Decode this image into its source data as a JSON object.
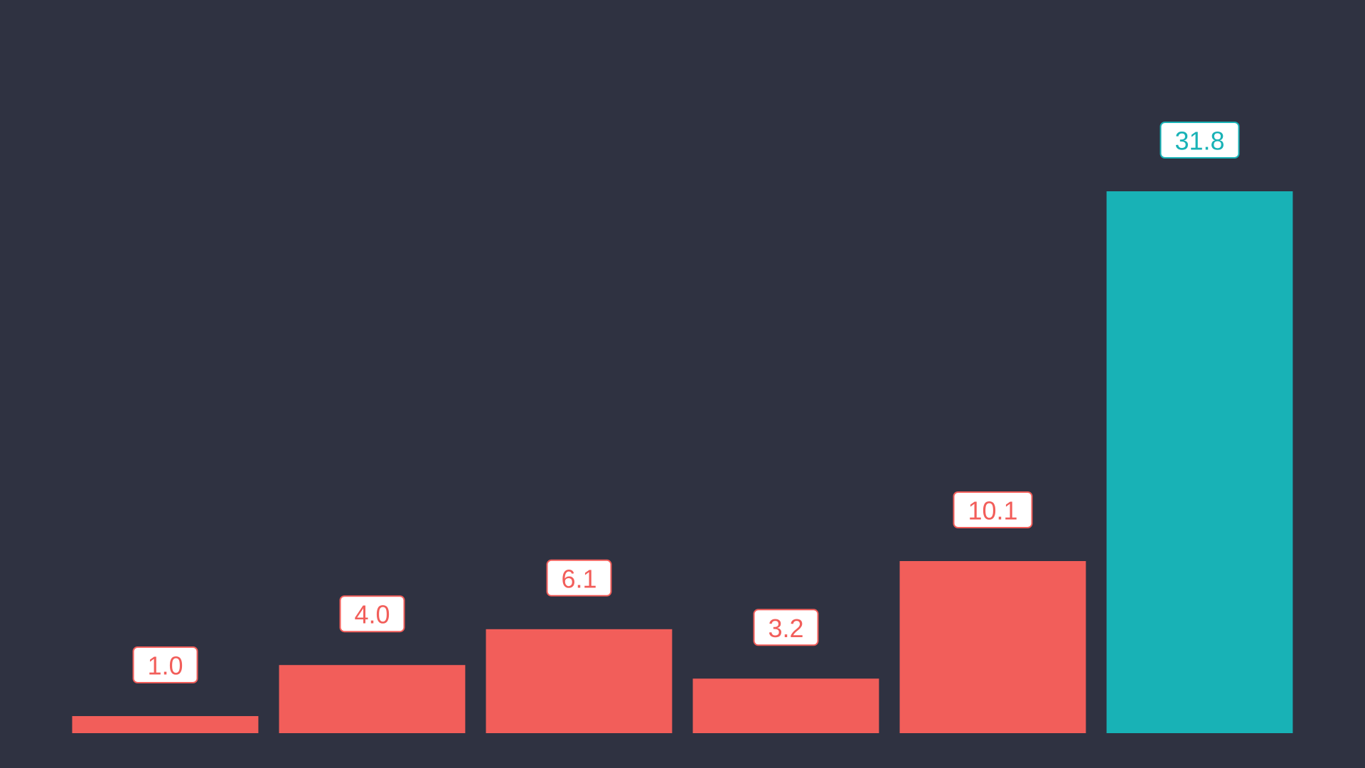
{
  "chart_data": {
    "type": "bar",
    "title": "",
    "xlabel": "",
    "ylabel": "",
    "categories": [
      "",
      "",
      "",
      "",
      "",
      ""
    ],
    "values": [
      1.0,
      4.0,
      6.1,
      3.2,
      10.1,
      31.8
    ],
    "value_labels": [
      "1.0",
      "4.0",
      "6.1",
      "3.2",
      "10.1",
      "31.8"
    ],
    "ylim": [
      0,
      31.8
    ],
    "grid": false,
    "legend": "none",
    "highlight_index": 5
  },
  "colors": {
    "background": "#2f3241",
    "bar": "#f25e5a",
    "highlight": "#18b2b6",
    "label_background": "#ffffff"
  }
}
